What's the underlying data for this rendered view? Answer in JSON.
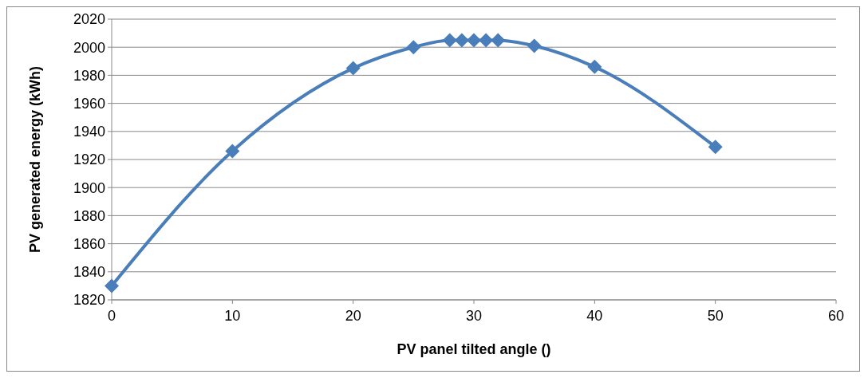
{
  "chart_data": {
    "type": "line",
    "xlabel": "PV panel tilted angle ()",
    "ylabel": "PV generated energy (kWh)",
    "x": [
      0,
      10,
      20,
      25,
      28,
      29,
      30,
      31,
      32,
      35,
      40,
      50
    ],
    "series": [
      {
        "color": "#4a7ebb",
        "values": [
          1830,
          1926,
          1985,
          2000,
          2005,
          2005,
          2005,
          2005,
          2005,
          2001,
          1986,
          1929
        ]
      }
    ],
    "xlim": [
      0,
      60
    ],
    "xticks": [
      0,
      10,
      20,
      30,
      40,
      50,
      60
    ],
    "ylim": [
      1820,
      2020
    ],
    "yticks": [
      1820,
      1840,
      1860,
      1880,
      1900,
      1920,
      1940,
      1960,
      1980,
      2000,
      2020
    ],
    "grid": "y",
    "marker": "diamond",
    "line_style": "solid"
  }
}
